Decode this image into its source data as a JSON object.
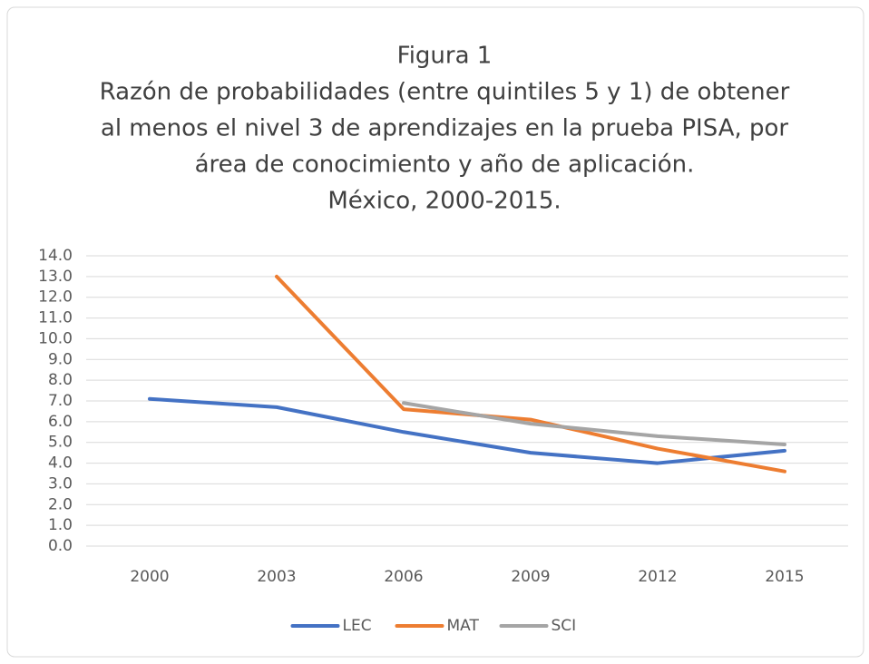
{
  "chart_data": {
    "type": "line",
    "title": [
      "Figura 1",
      "Razón de probabilidades (entre quintiles 5 y 1) de obtener",
      "al menos el nivel 3 de aprendizajes en la prueba PISA, por",
      "área de conocimiento y año de aplicación.",
      "México, 2000-2015."
    ],
    "categories": [
      "2000",
      "2003",
      "2006",
      "2009",
      "2012",
      "2015"
    ],
    "series": [
      {
        "name": "LEC",
        "color": "#4472c4",
        "values": [
          7.1,
          6.7,
          5.5,
          4.5,
          4.0,
          4.6
        ]
      },
      {
        "name": "MAT",
        "color": "#ed7d31",
        "values": [
          null,
          13.0,
          6.6,
          6.1,
          4.7,
          3.6
        ]
      },
      {
        "name": "SCI",
        "color": "#a5a5a5",
        "values": [
          null,
          null,
          6.9,
          5.9,
          5.3,
          4.9
        ]
      }
    ],
    "ylim": [
      0,
      14
    ],
    "yticks": [
      {
        "value": 0,
        "label": "0.0"
      },
      {
        "value": 1,
        "label": "1.0"
      },
      {
        "value": 2,
        "label": "2.0"
      },
      {
        "value": 3,
        "label": "3.0"
      },
      {
        "value": 4,
        "label": "4.0"
      },
      {
        "value": 5,
        "label": "5.0"
      },
      {
        "value": 6,
        "label": "6.0"
      },
      {
        "value": 7,
        "label": "7.0"
      },
      {
        "value": 8,
        "label": "8.0"
      },
      {
        "value": 9,
        "label": "9.0"
      },
      {
        "value": 10,
        "label": "10.0"
      },
      {
        "value": 11,
        "label": "11.0"
      },
      {
        "value": 12,
        "label": "12.0"
      },
      {
        "value": 13,
        "label": "13.0"
      },
      {
        "value": 14,
        "label": "14.0"
      }
    ],
    "grid": true,
    "legend": "bottom"
  }
}
